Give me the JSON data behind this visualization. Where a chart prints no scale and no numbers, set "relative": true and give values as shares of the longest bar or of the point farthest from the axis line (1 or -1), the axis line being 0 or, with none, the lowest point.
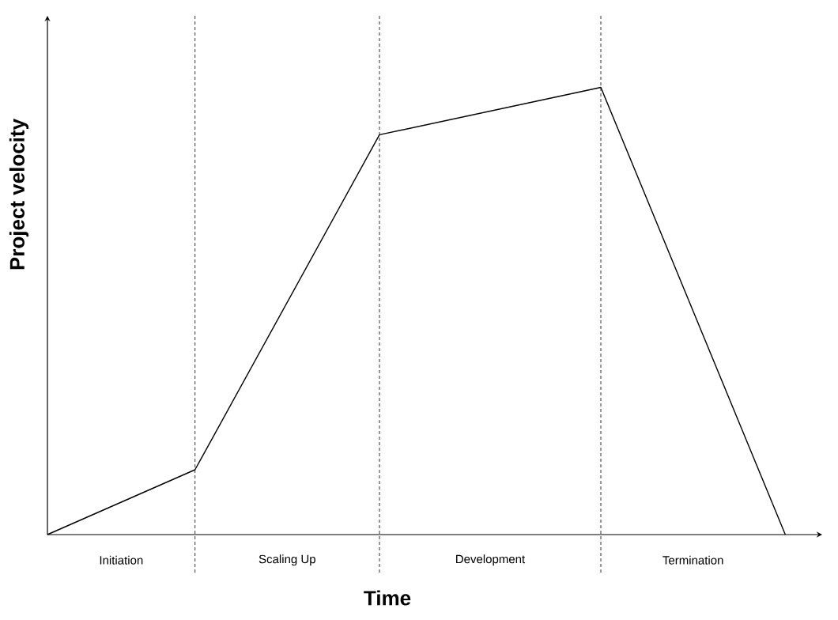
{
  "chart_data": {
    "type": "line",
    "relative": true,
    "xlabel": "Time",
    "ylabel": "Project velocity",
    "categories": [
      null,
      null,
      null,
      null,
      null,
      null,
      null,
      null,
      null,
      null,
      null,
      null,
      null,
      null,
      null,
      null,
      null,
      null,
      null,
      null,
      null
    ],
    "values": [
      0,
      null,
      null,
      null,
      0.145,
      null,
      null,
      null,
      null,
      0.894,
      null,
      null,
      null,
      null,
      null,
      1,
      null,
      null,
      null,
      null,
      0
    ],
    "color": "#000000",
    "tick_labels": false,
    "marker": "none",
    "line_style": "solid",
    "grid": "x",
    "annotations": [
      "Initiation",
      "Scaling Up",
      "Development",
      "Termination"
    ]
  }
}
